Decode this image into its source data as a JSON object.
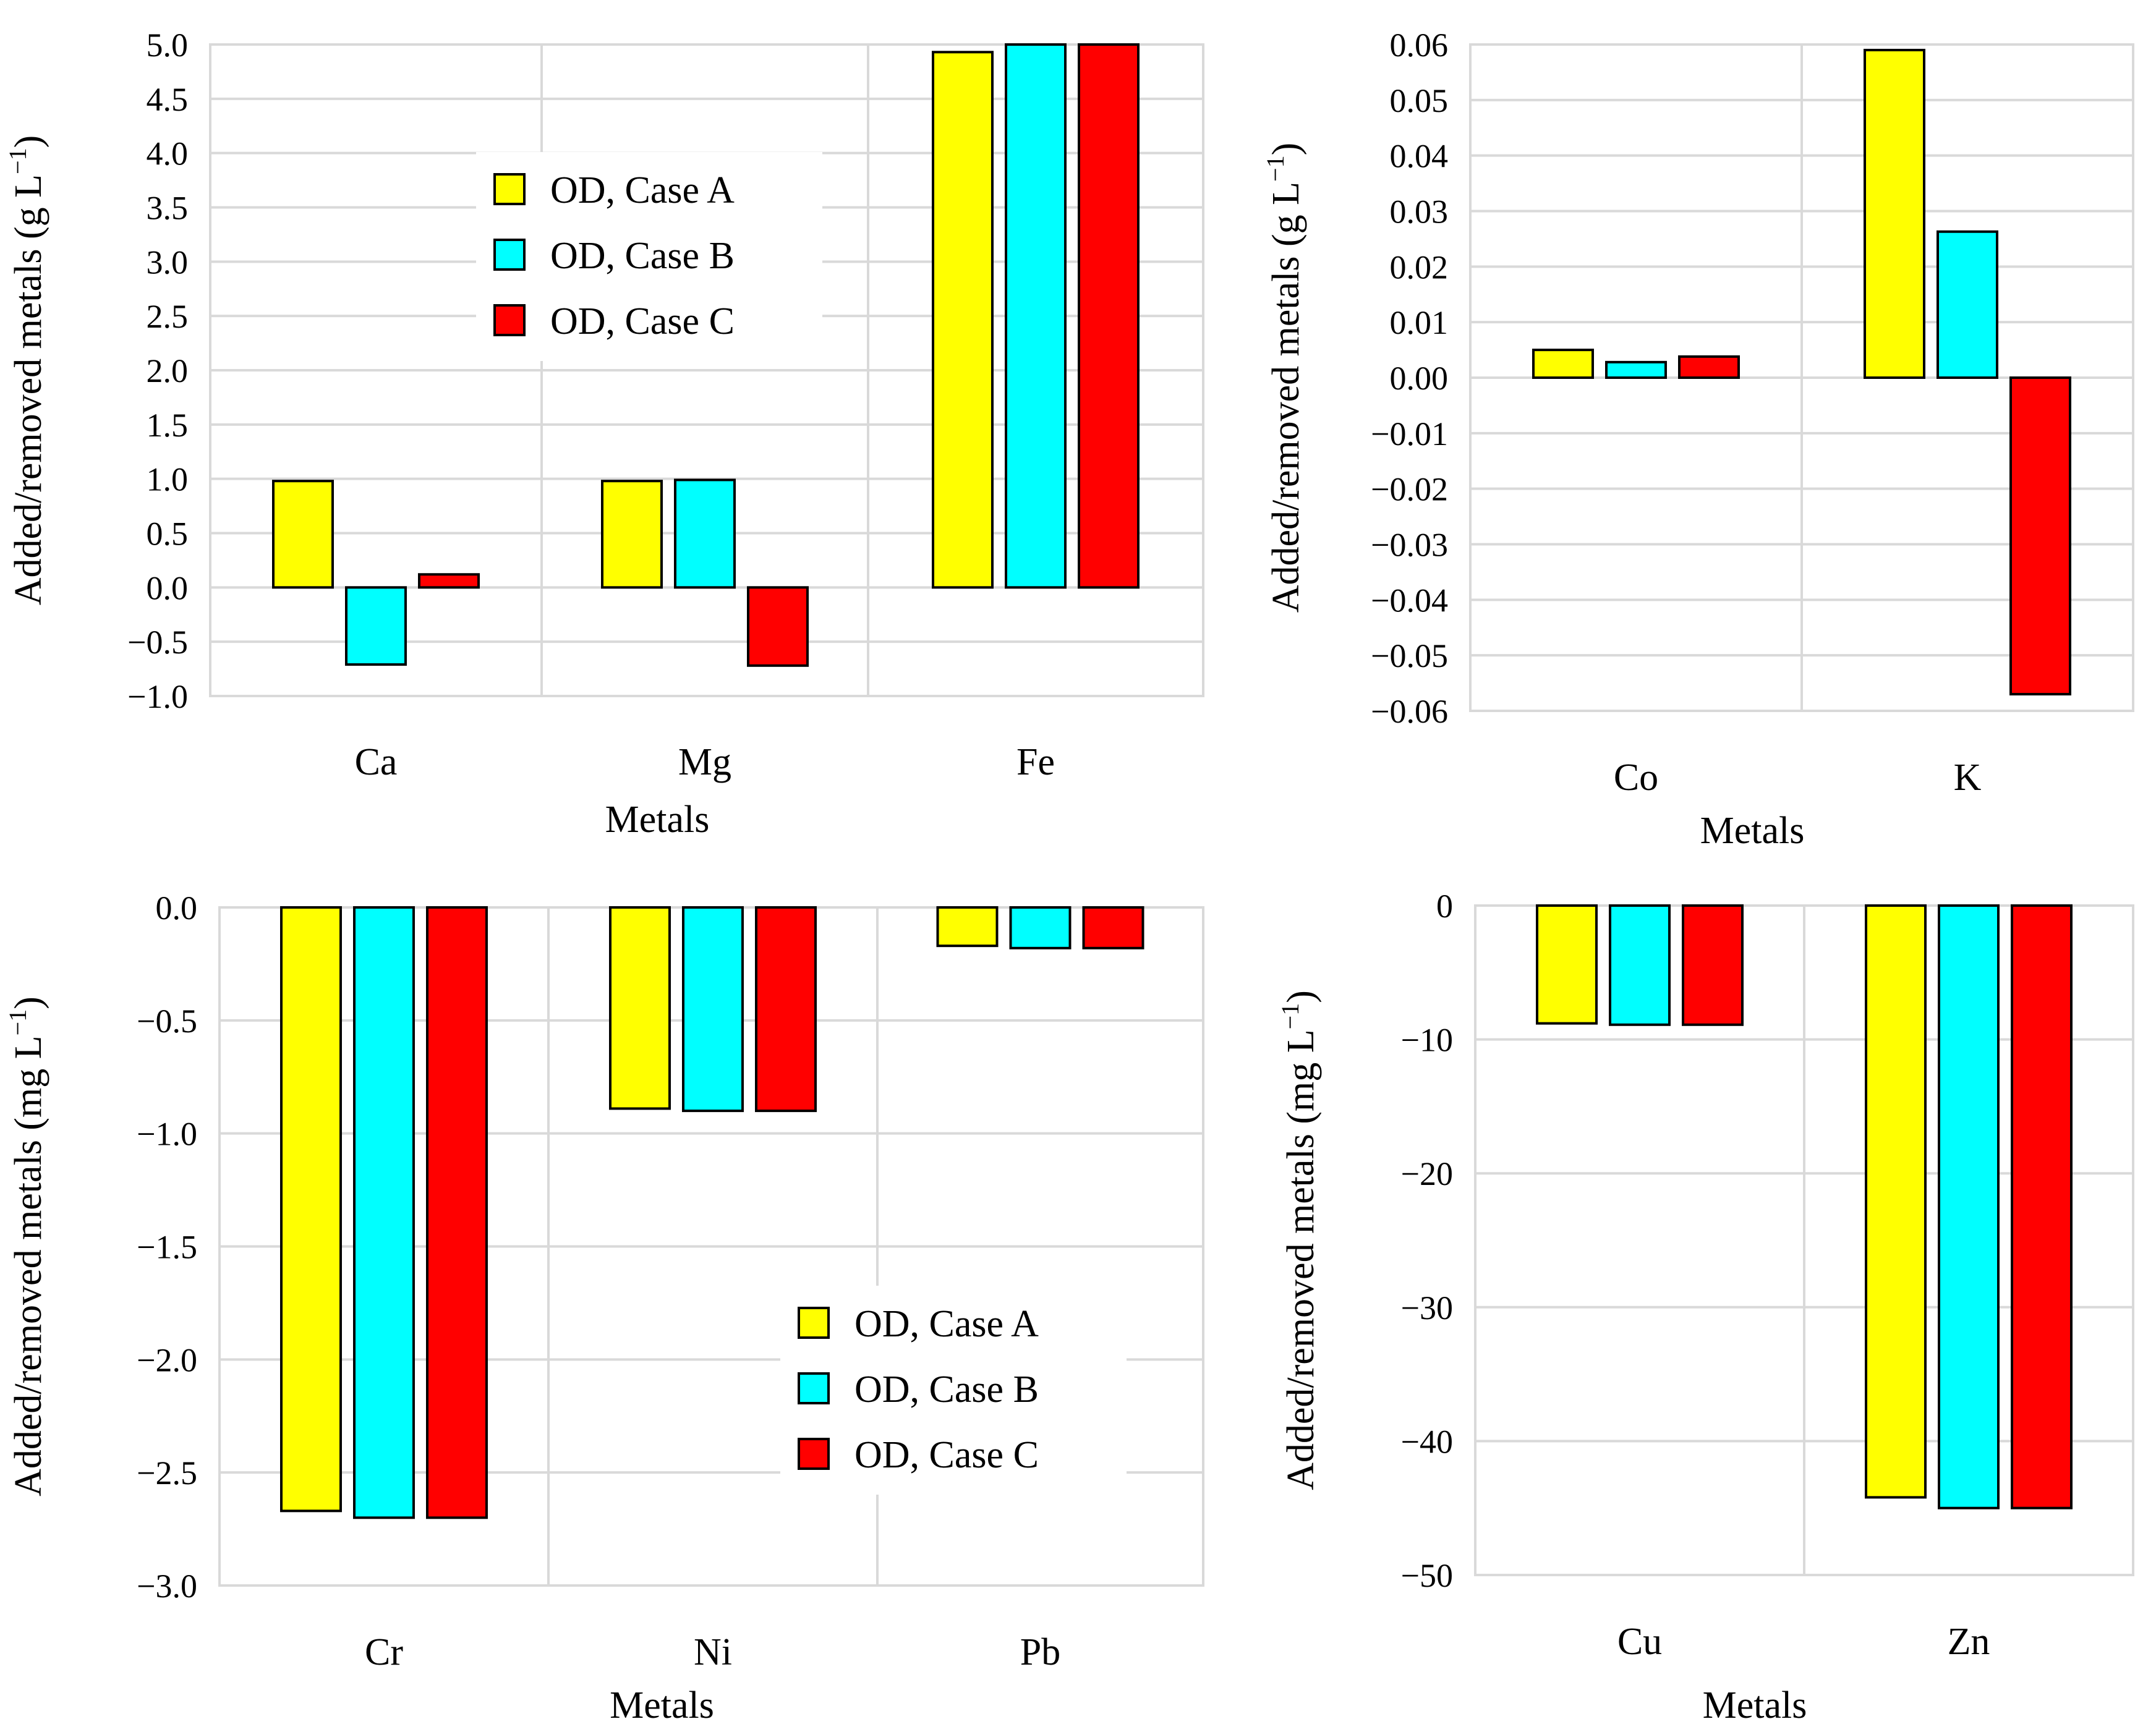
{
  "legend_labels": [
    "OD, Case A",
    "OD, Case B",
    "OD, Case C"
  ],
  "series_colors": [
    "#ffff00",
    "#00ffff",
    "#ff0000"
  ],
  "chart_data": [
    {
      "type": "bar",
      "categories": [
        "Ca",
        "Mg",
        "Fe"
      ],
      "series": [
        {
          "name": "OD, Case A",
          "values": [
            0.98,
            0.98,
            4.93
          ]
        },
        {
          "name": "OD, Case B",
          "values": [
            -0.71,
            0.99,
            5.0
          ]
        },
        {
          "name": "OD, Case C",
          "values": [
            0.12,
            -0.72,
            5.0
          ]
        }
      ],
      "title": "",
      "xlabel": "Metals",
      "ylabel_main": "Added/removed metals (g L",
      "ylabel_sup": "−1",
      "ylabel_close": ")",
      "ylim": [
        -1.0,
        5.0
      ],
      "yticks": [
        -1.0,
        -0.5,
        0.0,
        0.5,
        1.0,
        1.5,
        2.0,
        2.5,
        3.0,
        3.5,
        4.0,
        4.5,
        5.0
      ],
      "ytick_labels": [
        "−1.0",
        "−0.5",
        "0.0",
        "0.5",
        "1.0",
        "1.5",
        "2.0",
        "2.5",
        "3.0",
        "3.5",
        "4.0",
        "4.5",
        "5.0"
      ],
      "grid": true,
      "legend": "center"
    },
    {
      "type": "bar",
      "categories": [
        "Co",
        "K"
      ],
      "series": [
        {
          "name": "OD, Case A",
          "values": [
            0.005,
            0.059
          ]
        },
        {
          "name": "OD, Case B",
          "values": [
            0.0028,
            0.0263
          ]
        },
        {
          "name": "OD, Case C",
          "values": [
            0.0038,
            -0.057
          ]
        }
      ],
      "title": "",
      "xlabel": "Metals",
      "ylabel_main": "Added/removed metals (g L",
      "ylabel_sup": "−1",
      "ylabel_close": ")",
      "ylim": [
        -0.06,
        0.06
      ],
      "yticks": [
        -0.06,
        -0.05,
        -0.04,
        -0.03,
        -0.02,
        -0.01,
        0.0,
        0.01,
        0.02,
        0.03,
        0.04,
        0.05,
        0.06
      ],
      "ytick_labels": [
        "−0.06",
        "−0.05",
        "−0.04",
        "−0.03",
        "−0.02",
        "−0.01",
        "0.00",
        "0.01",
        "0.02",
        "0.03",
        "0.04",
        "0.05",
        "0.06"
      ],
      "grid": true,
      "legend": "none"
    },
    {
      "type": "bar",
      "categories": [
        "Cr",
        "Ni",
        "Pb"
      ],
      "series": [
        {
          "name": "OD, Case A",
          "values": [
            -2.67,
            -0.89,
            -0.17
          ]
        },
        {
          "name": "OD, Case B",
          "values": [
            -2.7,
            -0.9,
            -0.18
          ]
        },
        {
          "name": "OD, Case C",
          "values": [
            -2.7,
            -0.9,
            -0.18
          ]
        }
      ],
      "title": "",
      "xlabel": "Metals",
      "ylabel_main": "Added/removed metals (mg L",
      "ylabel_sup": "−1",
      "ylabel_close": ")",
      "ylim": [
        -3.0,
        0.0
      ],
      "yticks": [
        -3.0,
        -2.5,
        -2.0,
        -1.5,
        -1.0,
        -0.5,
        0.0
      ],
      "ytick_labels": [
        "−3.0",
        "−2.5",
        "−2.0",
        "−1.5",
        "−1.0",
        "−0.5",
        "0.0"
      ],
      "grid": true,
      "legend": "bottom-right"
    },
    {
      "type": "bar",
      "categories": [
        "Cu",
        "Zn"
      ],
      "series": [
        {
          "name": "OD, Case A",
          "values": [
            -8.8,
            -44.2
          ]
        },
        {
          "name": "OD, Case B",
          "values": [
            -8.9,
            -45.0
          ]
        },
        {
          "name": "OD, Case C",
          "values": [
            -8.9,
            -45.0
          ]
        }
      ],
      "title": "",
      "xlabel": "Metals",
      "ylabel_main": "Added/removed metals (mg L",
      "ylabel_sup": "−1",
      "ylabel_close": ")",
      "ylim": [
        -50,
        0
      ],
      "yticks": [
        -50,
        -40,
        -30,
        -20,
        -10,
        0
      ],
      "ytick_labels": [
        "−50",
        "−40",
        "−30",
        "−20",
        "−10",
        "0"
      ],
      "grid": true,
      "legend": "none"
    }
  ]
}
